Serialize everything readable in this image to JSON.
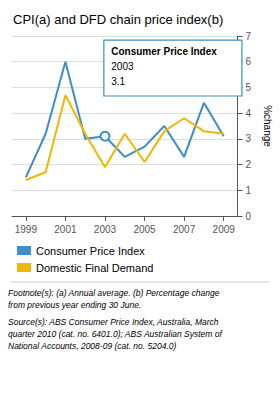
{
  "chart_data": {
    "type": "line",
    "title": "CPI(a) and DFD chain price index(b)",
    "x": [
      1999,
      2000,
      2001,
      2002,
      2003,
      2004,
      2005,
      2006,
      2007,
      2008,
      2009
    ],
    "xlim": [
      1998.3,
      2009.7
    ],
    "xticks": [
      1999,
      2001,
      2003,
      2005,
      2007,
      2009
    ],
    "ylim": [
      0,
      7
    ],
    "yticks": [
      0,
      1,
      2,
      3,
      4,
      5,
      6,
      7
    ],
    "ylabel": "%change",
    "grid": true,
    "legend": "bottom",
    "series": [
      {
        "name": "Consumer Price Index",
        "color": "#3b8ec7",
        "values": [
          1.5,
          3.2,
          6.0,
          3.0,
          3.1,
          2.3,
          2.7,
          3.5,
          2.3,
          4.4,
          3.1
        ]
      },
      {
        "name": "Domestic Final Demand",
        "color": "#f0b800",
        "values": [
          1.4,
          1.7,
          4.7,
          3.2,
          1.9,
          3.2,
          2.1,
          3.3,
          3.8,
          3.3,
          3.2
        ]
      }
    ],
    "annotations": [
      {
        "x": 2003,
        "y": 3.1,
        "text": [
          "Consumer Price Index",
          "2003",
          "3.1"
        ]
      }
    ],
    "footnotes": [
      "Footnote(s): (a) Annual average. (b) Percentage change",
      "from previous year ending 30 June."
    ],
    "source": [
      "Source(s): ABS Consumer Price Index, Australia, March",
      "quarter 2010 (cat. no. 6401.0); ABS Australian System of",
      "National Accounts, 2008-09 (cat. no. 5204.0)"
    ]
  }
}
